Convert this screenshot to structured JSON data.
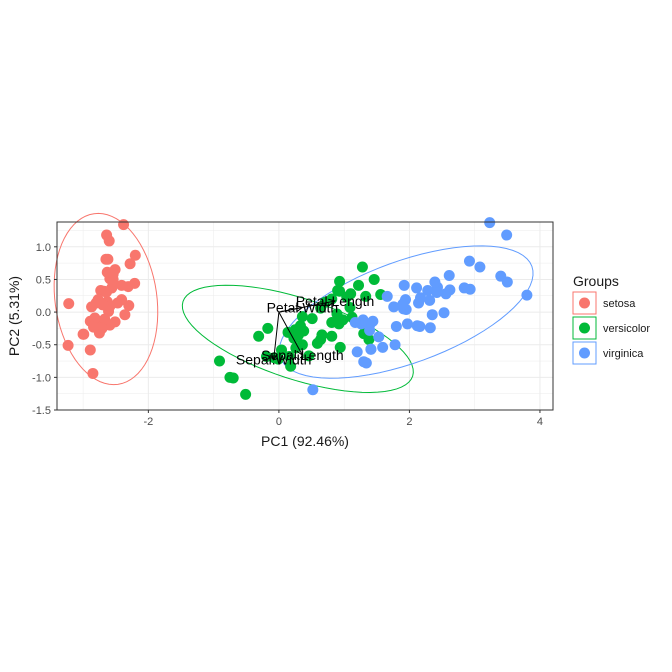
{
  "chart_data": {
    "type": "scatter",
    "xlabel": "PC1 (92.46%)",
    "ylabel": "PC2 (5.31%)",
    "xlim": [
      -3.4,
      4.2
    ],
    "ylim": [
      -1.5,
      1.38
    ],
    "x_ticks": [
      -2,
      0,
      2,
      4
    ],
    "y_ticks": [
      -1.5,
      -1.0,
      -0.5,
      0.0,
      0.5,
      1.0
    ],
    "y_tick_labels": [
      "-1.5",
      "-1.0",
      "-0.5",
      "0.0",
      "0.5",
      "1.0"
    ],
    "grid": true,
    "legend": {
      "title": "Groups",
      "position": "right",
      "entries": [
        "setosa",
        "versicolor",
        "virginica"
      ]
    },
    "series": [
      {
        "name": "setosa",
        "color": "#F8766D",
        "points": [
          [
            -2.68,
            0.32
          ],
          [
            -2.71,
            -0.18
          ],
          [
            -2.89,
            -0.14
          ],
          [
            -2.75,
            -0.32
          ],
          [
            -2.73,
            0.33
          ],
          [
            -2.28,
            0.74
          ],
          [
            -2.82,
            -0.09
          ],
          [
            -2.63,
            0.16
          ],
          [
            -2.89,
            -0.58
          ],
          [
            -2.67,
            -0.11
          ],
          [
            -2.51,
            0.65
          ],
          [
            -2.61,
            0.01
          ],
          [
            -2.79,
            -0.24
          ],
          [
            -3.23,
            -0.51
          ],
          [
            -2.64,
            1.18
          ],
          [
            -2.38,
            1.34
          ],
          [
            -2.62,
            0.81
          ],
          [
            -2.65,
            0.31
          ],
          [
            -2.2,
            0.87
          ],
          [
            -2.59,
            0.51
          ],
          [
            -2.31,
            0.39
          ],
          [
            -2.54,
            0.43
          ],
          [
            -3.22,
            0.13
          ],
          [
            -2.3,
            0.1
          ],
          [
            -2.36,
            -0.04
          ],
          [
            -2.51,
            -0.15
          ],
          [
            -2.47,
            0.14
          ],
          [
            -2.56,
            0.37
          ],
          [
            -2.64,
            0.31
          ],
          [
            -2.63,
            -0.19
          ],
          [
            -2.59,
            -0.2
          ],
          [
            -2.41,
            0.41
          ],
          [
            -2.65,
            0.81
          ],
          [
            -2.6,
            1.09
          ],
          [
            -2.67,
            -0.11
          ],
          [
            -2.87,
            0.08
          ],
          [
            -2.63,
            0.61
          ],
          [
            -2.8,
            0.14
          ],
          [
            -2.99,
            -0.34
          ],
          [
            -2.59,
            0.09
          ],
          [
            -2.77,
            0.19
          ],
          [
            -2.85,
            -0.94
          ],
          [
            -3.0,
            -0.34
          ],
          [
            -2.41,
            0.19
          ],
          [
            -2.21,
            0.44
          ],
          [
            -2.71,
            -0.25
          ],
          [
            -2.54,
            0.5
          ],
          [
            -2.84,
            -0.23
          ],
          [
            -2.54,
            0.58
          ],
          [
            -2.7,
            0.11
          ]
        ],
        "ellipse": {
          "center": [
            -2.65,
            0.2
          ],
          "rx": 0.78,
          "ry": 1.32,
          "angle_deg": 8
        }
      },
      {
        "name": "versicolor",
        "color": "#00BA38",
        "points": [
          [
            1.28,
            0.69
          ],
          [
            0.93,
            0.32
          ],
          [
            1.46,
            0.5
          ],
          [
            0.18,
            -0.83
          ],
          [
            1.09,
            0.07
          ],
          [
            0.64,
            -0.42
          ],
          [
            1.1,
            0.28
          ],
          [
            -0.75,
            -1.0
          ],
          [
            1.04,
            0.23
          ],
          [
            -0.01,
            -0.72
          ],
          [
            -0.51,
            -1.26
          ],
          [
            0.51,
            -0.1
          ],
          [
            0.26,
            -0.55
          ],
          [
            0.98,
            -0.12
          ],
          [
            -0.17,
            -0.25
          ],
          [
            0.93,
            0.47
          ],
          [
            0.66,
            -0.35
          ],
          [
            0.23,
            -0.33
          ],
          [
            0.94,
            -0.54
          ],
          [
            0.04,
            -0.58
          ],
          [
            1.12,
            -0.08
          ],
          [
            0.36,
            -0.07
          ],
          [
            1.3,
            -0.33
          ],
          [
            0.92,
            -0.18
          ],
          [
            0.71,
            0.15
          ],
          [
            0.9,
            0.33
          ],
          [
            1.33,
            0.24
          ],
          [
            1.56,
            0.27
          ],
          [
            0.81,
            -0.16
          ],
          [
            -0.31,
            -0.37
          ],
          [
            -0.07,
            -0.7
          ],
          [
            -0.19,
            -0.68
          ],
          [
            0.14,
            -0.31
          ],
          [
            1.38,
            -0.42
          ],
          [
            0.59,
            -0.48
          ],
          [
            0.81,
            0.2
          ],
          [
            1.22,
            0.41
          ],
          [
            0.81,
            -0.37
          ],
          [
            0.25,
            -0.27
          ],
          [
            0.16,
            -0.68
          ],
          [
            0.46,
            -0.67
          ],
          [
            0.89,
            -0.03
          ],
          [
            0.23,
            -0.4
          ],
          [
            -0.7,
            -1.01
          ],
          [
            0.36,
            -0.5
          ],
          [
            0.33,
            -0.21
          ],
          [
            0.38,
            -0.29
          ],
          [
            0.64,
            0.06
          ],
          [
            -0.91,
            -0.75
          ],
          [
            0.3,
            -0.35
          ]
        ],
        "ellipse": {
          "center": [
            0.29,
            -0.41
          ],
          "rx": 1.85,
          "ry": 0.62,
          "angle_deg": -18
        }
      },
      {
        "name": "virginica",
        "color": "#619CFF",
        "points": [
          [
            2.53,
            -0.01
          ],
          [
            1.41,
            -0.57
          ],
          [
            2.62,
            0.34
          ],
          [
            1.97,
            -0.18
          ],
          [
            2.35,
            -0.04
          ],
          [
            3.4,
            0.55
          ],
          [
            0.52,
            -1.19
          ],
          [
            2.93,
            0.35
          ],
          [
            2.32,
            -0.24
          ],
          [
            2.92,
            0.78
          ],
          [
            1.66,
            0.24
          ],
          [
            1.8,
            -0.22
          ],
          [
            2.17,
            0.22
          ],
          [
            1.34,
            -0.78
          ],
          [
            1.59,
            -0.54
          ],
          [
            1.9,
            0.12
          ],
          [
            1.95,
            0.04
          ],
          [
            3.49,
            1.18
          ],
          [
            3.8,
            0.26
          ],
          [
            1.3,
            -0.76
          ],
          [
            2.43,
            0.38
          ],
          [
            1.2,
            -0.61
          ],
          [
            3.5,
            0.46
          ],
          [
            1.39,
            -0.2
          ],
          [
            2.28,
            0.33
          ],
          [
            2.61,
            0.56
          ],
          [
            1.26,
            -0.18
          ],
          [
            1.29,
            -0.12
          ],
          [
            2.12,
            -0.21
          ],
          [
            2.39,
            0.46
          ],
          [
            2.84,
            0.37
          ],
          [
            3.23,
            1.37
          ],
          [
            2.16,
            -0.22
          ],
          [
            1.44,
            -0.14
          ],
          [
            1.78,
            -0.5
          ],
          [
            3.08,
            0.69
          ],
          [
            2.14,
            0.14
          ],
          [
            1.91,
            0.05
          ],
          [
            1.17,
            -0.16
          ],
          [
            2.11,
            0.37
          ],
          [
            2.31,
            0.18
          ],
          [
            1.92,
            0.41
          ],
          [
            1.41,
            -0.57
          ],
          [
            2.56,
            0.28
          ],
          [
            2.42,
            0.3
          ],
          [
            1.94,
            0.19
          ],
          [
            1.53,
            -0.38
          ],
          [
            1.76,
            0.08
          ],
          [
            1.9,
            0.12
          ],
          [
            1.39,
            -0.28
          ]
        ],
        "ellipse": {
          "center": [
            1.95,
            0.0
          ],
          "rx": 2.05,
          "ry": 0.78,
          "angle_deg": 20
        }
      }
    ],
    "loadings": [
      {
        "label": "Sepal.Length",
        "x": 0.36,
        "y": -0.66
      },
      {
        "label": "Sepal.Width",
        "x": -0.08,
        "y": -0.73
      },
      {
        "label": "Petal.Length",
        "x": 0.86,
        "y": 0.17
      },
      {
        "label": "Petal.Width",
        "x": 0.36,
        "y": 0.07
      }
    ]
  }
}
